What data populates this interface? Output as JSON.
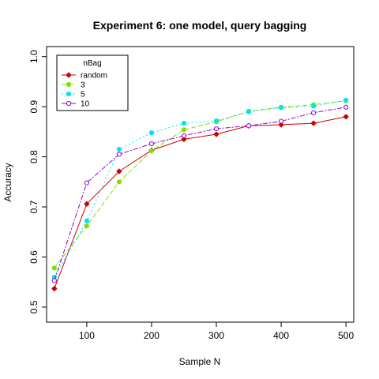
{
  "chart_data": {
    "type": "line",
    "title": "Experiment 6: one model, query bagging",
    "xlabel": "Sample N",
    "ylabel": "Accuracy",
    "xlim": [
      38,
      512
    ],
    "ylim": [
      0.47,
      1.02
    ],
    "x_ticks": [
      100,
      200,
      300,
      400,
      500
    ],
    "y_ticks": [
      0.5,
      0.6,
      0.7,
      0.8,
      0.9,
      1.0
    ],
    "x_tick_labels": [
      "100",
      "200",
      "300",
      "400",
      "500"
    ],
    "y_tick_labels": [
      "0.5",
      "0.6",
      "0.7",
      "0.8",
      "0.9",
      "1.0"
    ],
    "grid": false,
    "legend": {
      "title": "nBag",
      "placement": "top-left"
    },
    "x": [
      50,
      100,
      150,
      200,
      250,
      300,
      350,
      400,
      450,
      500
    ],
    "series": [
      {
        "name": "random",
        "color": "#CD0000",
        "marker": "diamond",
        "dash": "",
        "values": [
          0.537,
          0.706,
          0.771,
          0.813,
          0.835,
          0.845,
          0.862,
          0.864,
          0.867,
          0.88
        ]
      },
      {
        "name": "3",
        "color": "#7FE000",
        "marker": "circle",
        "dash": "6,3",
        "values": [
          0.578,
          0.662,
          0.75,
          0.812,
          0.854,
          0.87,
          0.891,
          0.899,
          0.904,
          0.912
        ]
      },
      {
        "name": "5",
        "color": "#00E5EE",
        "marker": "circle",
        "dash": "2,3",
        "values": [
          0.56,
          0.672,
          0.815,
          0.848,
          0.867,
          0.872,
          0.89,
          0.898,
          0.901,
          0.913
        ]
      },
      {
        "name": "10",
        "color": "#9400D3",
        "marker": "open-circle",
        "dash": "6,2,2,2",
        "values": [
          0.553,
          0.748,
          0.805,
          0.826,
          0.842,
          0.856,
          0.862,
          0.871,
          0.888,
          0.899
        ]
      }
    ]
  }
}
